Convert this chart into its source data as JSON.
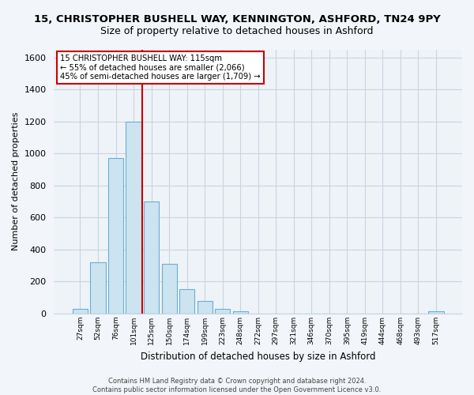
{
  "title": "15, CHRISTOPHER BUSHELL WAY, KENNINGTON, ASHFORD, TN24 9PY",
  "subtitle": "Size of property relative to detached houses in Ashford",
  "xlabel": "Distribution of detached houses by size in Ashford",
  "ylabel": "Number of detached properties",
  "categories": [
    "27sqm",
    "52sqm",
    "76sqm",
    "101sqm",
    "125sqm",
    "150sqm",
    "174sqm",
    "199sqm",
    "223sqm",
    "248sqm",
    "272sqm",
    "297sqm",
    "321sqm",
    "346sqm",
    "370sqm",
    "395sqm",
    "419sqm",
    "444sqm",
    "468sqm",
    "493sqm",
    "517sqm"
  ],
  "values": [
    30,
    320,
    970,
    1200,
    700,
    310,
    155,
    80,
    30,
    15,
    0,
    0,
    0,
    0,
    0,
    0,
    0,
    0,
    0,
    0,
    15
  ],
  "bar_color": "#cce3f0",
  "bar_edge_color": "#6aaed6",
  "vline_x": 3.5,
  "vline_color": "#cc0000",
  "annotation_title": "15 CHRISTOPHER BUSHELL WAY: 115sqm",
  "annotation_line1": "← 55% of detached houses are smaller (2,066)",
  "annotation_line2": "45% of semi-detached houses are larger (1,709) →",
  "annotation_box_color": "#ffffff",
  "annotation_box_edge_color": "#cc0000",
  "footer_line1": "Contains HM Land Registry data © Crown copyright and database right 2024.",
  "footer_line2": "Contains public sector information licensed under the Open Government Licence v3.0.",
  "ylim": [
    0,
    1650
  ],
  "background_color": "#f2f6fa",
  "plot_background_color": "#eef3f8",
  "grid_color": "#c8d4e0",
  "title_fontsize": 9.5,
  "subtitle_fontsize": 9
}
